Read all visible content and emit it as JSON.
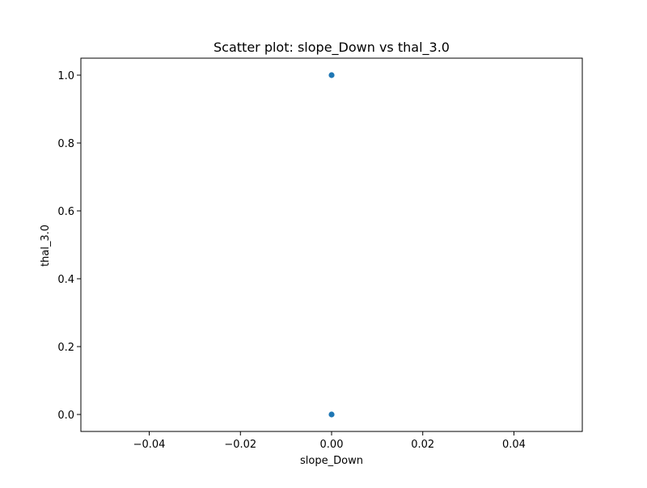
{
  "chart_data": {
    "type": "scatter",
    "title": "Scatter plot: slope_Down vs thal_3.0",
    "xlabel": "slope_Down",
    "ylabel": "thal_3.0",
    "xlim": [
      -0.055,
      0.055
    ],
    "ylim": [
      -0.05,
      1.05
    ],
    "xticks": [
      -0.04,
      -0.02,
      0.0,
      0.02,
      0.04
    ],
    "xtick_labels": [
      "−0.04",
      "−0.02",
      "0.00",
      "0.02",
      "0.04"
    ],
    "yticks": [
      0.0,
      0.2,
      0.4,
      0.6,
      0.8,
      1.0
    ],
    "ytick_labels": [
      "0.0",
      "0.2",
      "0.4",
      "0.6",
      "0.8",
      "1.0"
    ],
    "grid": false,
    "marker_color": "#1f77b4",
    "points": [
      {
        "x": 0.0,
        "y": 1.0
      },
      {
        "x": 0.0,
        "y": 0.0
      }
    ]
  }
}
